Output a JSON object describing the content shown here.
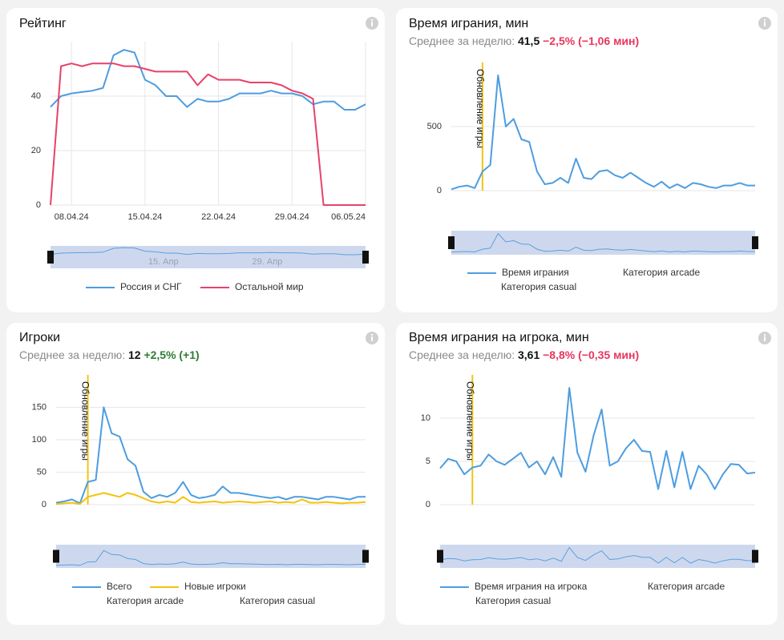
{
  "chart_data": [
    {
      "type": "line",
      "title": "Рейтинг",
      "categories": [
        null,
        null,
        "08.04.24",
        null,
        null,
        null,
        null,
        null,
        null,
        "15.04.24",
        null,
        null,
        null,
        null,
        null,
        null,
        "22.04.24",
        null,
        null,
        null,
        null,
        null,
        null,
        "29.04.24",
        null,
        null,
        null,
        null,
        null,
        null,
        "06.05.24"
      ],
      "series": [
        {
          "name": "Россия и СНГ",
          "color": "#4d9de0",
          "values": [
            36,
            40,
            41,
            41.5,
            42,
            43,
            55,
            57,
            56,
            46,
            44,
            40,
            40,
            36,
            39,
            38,
            38,
            39,
            41,
            41,
            41,
            42,
            41,
            41,
            40,
            37,
            38,
            38,
            35,
            35,
            37
          ]
        },
        {
          "name": "Остальной мир",
          "color": "#e8416a",
          "values": [
            0,
            51,
            52,
            51,
            52,
            52,
            52,
            51,
            51,
            50,
            49,
            49,
            49,
            49,
            44,
            48,
            46,
            46,
            46,
            45,
            45,
            45,
            44,
            42,
            41,
            39,
            0,
            0,
            0,
            0,
            0
          ]
        }
      ],
      "ylim": [
        0,
        60
      ],
      "yticks": [
        0,
        20,
        40
      ],
      "grid": true,
      "navigator_labels": [
        "15. Апр",
        "29. Апр"
      ]
    },
    {
      "type": "line",
      "title": "Время играния, мин",
      "stats": {
        "label": "Среднее за неделю:",
        "value": "41,5",
        "change": "−2,5% (−1,06 мин)",
        "change_color": "#e8365d"
      },
      "series": [
        {
          "name": "Время играния",
          "color": "#4d9de0",
          "values": [
            10,
            30,
            40,
            20,
            150,
            200,
            900,
            500,
            560,
            400,
            380,
            150,
            50,
            60,
            100,
            60,
            250,
            100,
            90,
            150,
            160,
            120,
            100,
            140,
            100,
            60,
            30,
            70,
            20,
            50,
            20,
            60,
            50,
            30,
            20,
            40,
            40,
            60,
            40,
            40
          ]
        }
      ],
      "legend_extra": [
        "Категория arcade",
        "Категория casual"
      ],
      "annotation": {
        "label": "Обновление игры",
        "at": 4,
        "color": "#f0c419"
      },
      "ylim": [
        0,
        1000
      ],
      "yticks": [
        0,
        500
      ],
      "grid": true
    },
    {
      "type": "line",
      "title": "Игроки",
      "stats": {
        "label": "Среднее за неделю:",
        "value": "12",
        "change": "+2,5% (+1)",
        "change_color": "#2e7d32"
      },
      "series": [
        {
          "name": "Всего",
          "color": "#4d9de0",
          "values": [
            3,
            5,
            8,
            2,
            35,
            38,
            150,
            110,
            105,
            70,
            60,
            20,
            10,
            15,
            12,
            18,
            35,
            15,
            10,
            12,
            15,
            28,
            18,
            18,
            16,
            14,
            12,
            10,
            12,
            8,
            12,
            12,
            10,
            8,
            12,
            12,
            10,
            8,
            12,
            12
          ]
        },
        {
          "name": "Новые игроки",
          "color": "#f4c20d",
          "values": [
            1,
            2,
            3,
            1,
            12,
            15,
            18,
            15,
            12,
            18,
            15,
            10,
            5,
            3,
            5,
            3,
            12,
            4,
            3,
            4,
            5,
            3,
            4,
            5,
            4,
            3,
            4,
            5,
            3,
            4,
            3,
            8,
            3,
            3,
            4,
            3,
            2,
            3,
            3,
            4
          ]
        }
      ],
      "legend_extra": [
        "Категория arcade",
        "Категория casual"
      ],
      "annotation": {
        "label": "Обновление игры",
        "at": 4,
        "color": "#f0c419"
      },
      "ylim": [
        0,
        200
      ],
      "yticks": [
        0,
        50,
        100,
        150
      ],
      "grid": true
    },
    {
      "type": "line",
      "title": "Время играния на игрока, мин",
      "stats": {
        "label": "Среднее за неделю:",
        "value": "3,61",
        "change": "−8,8% (−0,35 мин)",
        "change_color": "#e8365d"
      },
      "series": [
        {
          "name": "Время играния на игрока",
          "color": "#4d9de0",
          "values": [
            4.2,
            5.3,
            5,
            3.5,
            4.3,
            4.5,
            5.8,
            5,
            4.6,
            5.3,
            6,
            4.3,
            5,
            3.5,
            5.5,
            3.2,
            13.5,
            6,
            3.8,
            8,
            11,
            4.5,
            5,
            6.5,
            7.5,
            6.2,
            6.1,
            1.8,
            6.2,
            2,
            6.1,
            1.8,
            4.5,
            3.5,
            1.8,
            3.5,
            4.7,
            4.6,
            3.6,
            3.7
          ]
        }
      ],
      "legend_extra": [
        "Категория arcade",
        "Категория casual"
      ],
      "annotation": {
        "label": "Обновление игры",
        "at": 4,
        "color": "#f0c419"
      },
      "ylim": [
        0,
        15
      ],
      "yticks": [
        0,
        5,
        10
      ],
      "grid": true
    }
  ]
}
